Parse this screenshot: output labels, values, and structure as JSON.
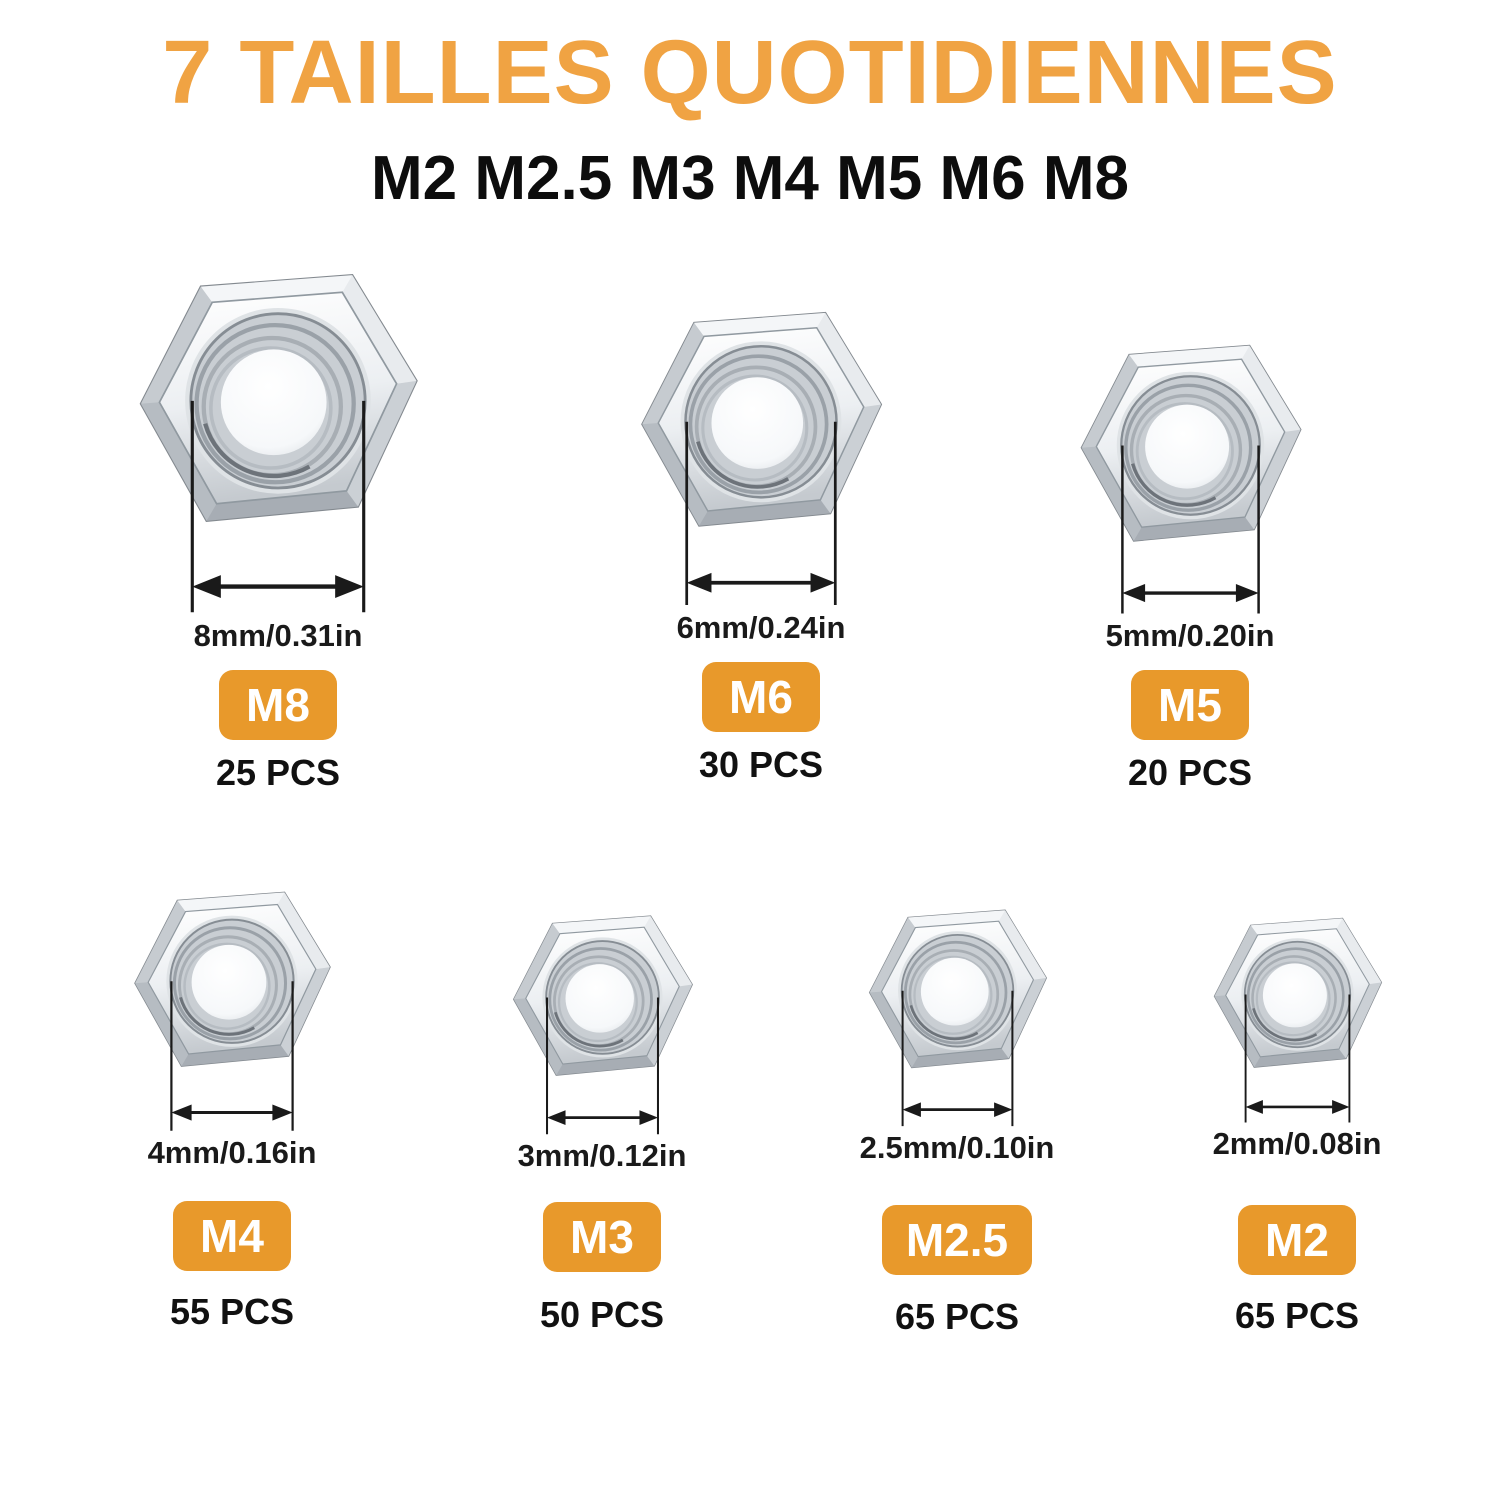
{
  "header": {
    "title": "7 TAILLES QUOTIDIENNES",
    "subtitle": "M2 M2.5 M3 M4 M5 M6 M8"
  },
  "colors": {
    "title_orange": "#F0A343",
    "badge_orange": "#E8992B",
    "badge_text": "#FFFFFF",
    "body_text": "#111111",
    "dimension_lines": "#1a1a1a",
    "background": "#FFFFFF"
  },
  "icons": {
    "hex_nut": "hex-nut-photo",
    "dimension_arrow": "double-headed-arrow ↔"
  },
  "nuts": [
    {
      "size_label": "M8",
      "hole_diameter": "8mm/0.31in",
      "quantity": "25 PCS"
    },
    {
      "size_label": "M6",
      "hole_diameter": "6mm/0.24in",
      "quantity": "30 PCS"
    },
    {
      "size_label": "M5",
      "hole_diameter": "5mm/0.20in",
      "quantity": "20 PCS"
    },
    {
      "size_label": "M4",
      "hole_diameter": "4mm/0.16in",
      "quantity": "55 PCS"
    },
    {
      "size_label": "M3",
      "hole_diameter": "3mm/0.12in",
      "quantity": "50 PCS"
    },
    {
      "size_label": "M2.5",
      "hole_diameter": "2.5mm/0.10in",
      "quantity": "65 PCS"
    },
    {
      "size_label": "M2",
      "hole_diameter": "2mm/0.08in",
      "quantity": "65 PCS"
    }
  ]
}
